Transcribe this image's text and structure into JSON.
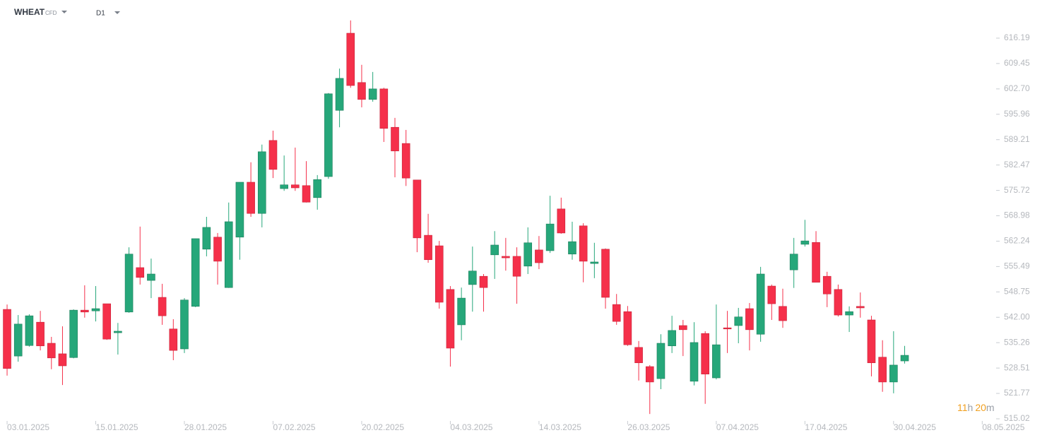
{
  "toolbar": {
    "symbol": "WHEAT",
    "instrument": "CFD",
    "timeframe": "D1"
  },
  "chart_data": {
    "type": "candlestick",
    "up_color": "#26a77a",
    "down_color": "#f5304a",
    "countdown": [
      "11",
      "h",
      "20",
      "m"
    ],
    "xlim": [
      -0.64,
      89
    ],
    "xticks": [
      {
        "value": 0,
        "label": "03.01.2025"
      },
      {
        "value": 8,
        "label": "15.01.2025"
      },
      {
        "value": 16,
        "label": "28.01.2025"
      },
      {
        "value": 24,
        "label": "07.02.2025"
      },
      {
        "value": 32,
        "label": "20.02.2025"
      },
      {
        "value": 40,
        "label": "04.03.2025"
      },
      {
        "value": 48,
        "label": "14.03.2025"
      },
      {
        "value": 56,
        "label": "26.03.2025"
      },
      {
        "value": 64,
        "label": "07.04.2025"
      },
      {
        "value": 72,
        "label": "17.04.2025"
      },
      {
        "value": 80,
        "label": "30.04.2025"
      },
      {
        "value": 88,
        "label": "08.05.2025"
      }
    ],
    "ylim": [
      515.02,
      616.19
    ],
    "yticks": [
      616.19,
      609.45,
      {
        "value": 602.7,
        "label": "602.70"
      },
      595.96,
      589.21,
      582.47,
      575.72,
      568.98,
      562.24,
      555.49,
      548.75,
      {
        "value": 542,
        "label": "542.00"
      },
      535.26,
      528.51,
      521.77,
      515.02
    ],
    "open": [
      544.1,
      531.7,
      534.5,
      540.7,
      535.1,
      532.3,
      531.3,
      543.9,
      543.7,
      545.6,
      537.9,
      543.4,
      555.2,
      551.8,
      547.3,
      538.9,
      533.6,
      544.9,
      560.1,
      563.3,
      549.9,
      563.3,
      577.9,
      569.6,
      589.0,
      576.2,
      577.2,
      577.0,
      573.8,
      579.4,
      597.0,
      617.5,
      604.4,
      599.9,
      602.7,
      592.5,
      588.2,
      578.5,
      563.8,
      561.0,
      549.4,
      540.0,
      550.7,
      552.9,
      558.6,
      558.2,
      558.2,
      555.6,
      559.9,
      559.7,
      570.8,
      558.8,
      566.3,
      556.3,
      560.1,
      545.4,
      543.5,
      534.0,
      528.9,
      525.7,
      534.4,
      539.8,
      525.0,
      537.7,
      525.9,
      539.2,
      539.8,
      544.3,
      537.5,
      550.3,
      544.9,
      554.6,
      561.4,
      561.9,
      552.9,
      549.4,
      542.6,
      544.9,
      541.3,
      531.4,
      524.8,
      530.4
    ],
    "high": [
      545.4,
      542.6,
      542.8,
      543.7,
      536.8,
      539.6,
      544.1,
      550.5,
      550.3,
      545.6,
      540.5,
      560.6,
      566.1,
      557.6,
      550.9,
      541.5,
      547.1,
      562.9,
      568.7,
      564.4,
      572.5,
      577.9,
      583.2,
      587.9,
      591.6,
      585.0,
      587.1,
      583.5,
      579.8,
      601.6,
      608.1,
      620.9,
      609.1,
      607.2,
      603.0,
      595.0,
      591.8,
      578.5,
      569.5,
      562.3,
      550.3,
      549.9,
      560.8,
      553.5,
      564.9,
      563.1,
      560.6,
      565.9,
      563.6,
      574.3,
      573.8,
      567.4,
      567.0,
      561.8,
      560.3,
      548.2,
      545.0,
      535.7,
      529.3,
      537.5,
      542.4,
      541.3,
      540.7,
      538.3,
      545.4,
      543.7,
      544.5,
      545.8,
      555.4,
      550.7,
      549.6,
      563.1,
      567.9,
      564.9,
      554.1,
      550.7,
      544.9,
      548.6,
      542.4,
      535.9,
      538.3,
      534.4
    ],
    "low": [
      526.5,
      530.2,
      534.2,
      533.2,
      528.2,
      524.0,
      531.1,
      541.9,
      540.9,
      536.0,
      532.1,
      543.2,
      550.7,
      547.1,
      540.0,
      530.6,
      532.5,
      544.7,
      558.2,
      550.7,
      549.8,
      557.3,
      568.7,
      565.9,
      579.0,
      575.6,
      575.6,
      572.5,
      570.6,
      578.8,
      592.5,
      603.0,
      597.8,
      599.3,
      588.6,
      579.2,
      576.9,
      559.3,
      556.5,
      544.3,
      528.9,
      535.9,
      543.5,
      543.5,
      552.2,
      554.4,
      545.6,
      553.5,
      554.8,
      559.1,
      564.2,
      557.3,
      551.3,
      552.4,
      544.3,
      540.0,
      534.4,
      525.2,
      516.3,
      522.9,
      532.5,
      531.7,
      523.9,
      519.0,
      525.5,
      532.5,
      535.1,
      533.2,
      535.5,
      541.3,
      539.2,
      549.8,
      560.8,
      551.3,
      544.7,
      542.2,
      538.1,
      541.9,
      526.3,
      522.2,
      521.8,
      529.7
    ],
    "close": [
      528.4,
      540.2,
      542.4,
      534.4,
      531.2,
      529.1,
      543.9,
      543.4,
      544.3,
      536.2,
      538.3,
      558.8,
      552.6,
      553.5,
      542.4,
      533.2,
      546.6,
      562.9,
      565.9,
      556.9,
      567.4,
      577.9,
      569.6,
      586.0,
      581.3,
      577.2,
      576.4,
      572.6,
      578.6,
      601.4,
      605.5,
      603.6,
      599.9,
      602.7,
      592.2,
      586.2,
      579.0,
      563.1,
      557.3,
      546.0,
      533.8,
      547.1,
      554.3,
      549.9,
      561.2,
      557.8,
      552.9,
      561.8,
      556.5,
      566.8,
      564.4,
      562.1,
      556.9,
      556.7,
      547.3,
      540.9,
      534.7,
      529.9,
      524.8,
      535.1,
      538.5,
      538.7,
      535.3,
      526.9,
      534.7,
      538.9,
      542.1,
      538.7,
      553.5,
      545.6,
      541.1,
      558.8,
      562.3,
      551.3,
      548.2,
      542.6,
      543.5,
      544.5,
      529.9,
      524.8,
      529.3,
      531.9
    ]
  }
}
